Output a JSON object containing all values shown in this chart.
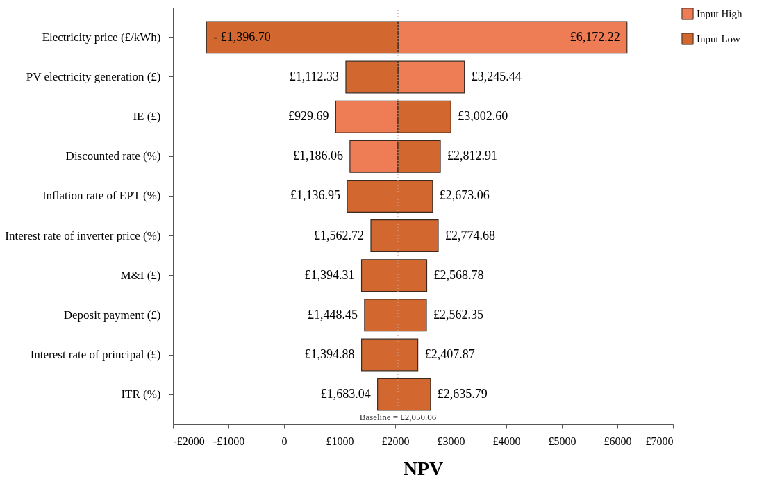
{
  "chart_data": {
    "type": "bar",
    "orientation": "horizontal",
    "xlabel": "NPV",
    "categories": [
      "Electricity price (£/kWh)",
      "PV electricity generation (£)",
      "IE (£)",
      "Discounted rate (%)",
      "Inflation rate of EPT (%)",
      "Interest rate of inverter price (%)",
      "M&I (£)",
      "Deposit payment (£)",
      "Interest rate of principal (£)",
      "ITR (%)"
    ],
    "series": [
      {
        "name": "Input High",
        "color": "#ee7d55",
        "base": [
          2050.06,
          2050.06,
          929.69,
          1186.06,
          null,
          null,
          null,
          null,
          null,
          null
        ],
        "values": [
          4122.16,
          1195.38,
          1120.37,
          864.0,
          null,
          null,
          null,
          null,
          null,
          null
        ]
      },
      {
        "name": "Input Low",
        "color": "#d2682f",
        "base": [
          -1396.7,
          1112.33,
          2050.06,
          2050.06,
          1136.95,
          1562.72,
          1394.31,
          1448.45,
          1394.88,
          1683.04
        ],
        "values": [
          3446.76,
          937.73,
          952.54,
          762.85,
          1536.11,
          1211.96,
          1174.47,
          1113.9,
          1012.99,
          952.75
        ]
      }
    ],
    "xlim": [
      -2000,
      7000
    ],
    "xticks": [
      {
        "value": -2000,
        "label": "-£2000"
      },
      {
        "value": -1000,
        "label": "-£1000"
      },
      0,
      {
        "value": 1000,
        "label": "£1000"
      },
      {
        "value": 2000,
        "label": "£2000"
      },
      {
        "value": 3000,
        "label": "£3000"
      },
      {
        "value": 4000,
        "label": "£4000"
      },
      {
        "value": 5000,
        "label": "£5000"
      },
      {
        "value": 6000,
        "label": "£6000"
      },
      {
        "value": 7000,
        "label": "£7000"
      }
    ],
    "ref_lines": [
      {
        "axis": "x",
        "value": 2050.06,
        "label": "Baseline = £2,050.06",
        "color": "#c8a090",
        "line_style": "dotted"
      }
    ],
    "annotations": [
      {
        "text": "- £1,396.70",
        "x": -1396.7,
        "y": "Electricity price (£/kWh)"
      },
      {
        "text": "£6,172.22",
        "x": 6172.22,
        "y": "Electricity price (£/kWh)"
      },
      {
        "text": "£1,112.33",
        "x": 1112.33,
        "y": "PV electricity generation (£)"
      },
      {
        "text": "£3,245.44",
        "x": 3245.44,
        "y": "PV electricity generation (£)"
      },
      {
        "text": "£929.69",
        "x": 929.69,
        "y": "IE (£)"
      },
      {
        "text": "£3,002.60",
        "x": 3002.6,
        "y": "IE (£)"
      },
      {
        "text": "£1,186.06",
        "x": 1186.06,
        "y": "Discounted rate (%)"
      },
      {
        "text": "£2,812.91",
        "x": 2812.91,
        "y": "Discounted rate (%)"
      },
      {
        "text": "£1,136.95",
        "x": 1136.95,
        "y": "Inflation rate of EPT (%)"
      },
      {
        "text": "£2,673.06",
        "x": 2673.06,
        "y": "Inflation rate of EPT (%)"
      },
      {
        "text": "£1,562.72",
        "x": 1562.72,
        "y": "Interest rate of inverter price (%)"
      },
      {
        "text": "£2,774.68",
        "x": 2774.68,
        "y": "Interest rate of inverter price (%)"
      },
      {
        "text": "£1,394.31",
        "x": 1394.31,
        "y": "M&I (£)"
      },
      {
        "text": "£2,568.78",
        "x": 2568.78,
        "y": "M&I (£)"
      },
      {
        "text": "£1,448.45",
        "x": 1448.45,
        "y": "Deposit payment (£)"
      },
      {
        "text": "£2,562.35",
        "x": 2562.35,
        "y": "Deposit payment (£)"
      },
      {
        "text": "£1,394.88",
        "x": 1394.88,
        "y": "Interest rate of principal (£)"
      },
      {
        "text": "£2,407.87",
        "x": 2407.87,
        "y": "Interest rate of principal (£)"
      },
      {
        "text": "£1,683.04",
        "x": 1683.04,
        "y": "ITR (%)"
      },
      {
        "text": "£2,635.79",
        "x": 2635.79,
        "y": "ITR (%)"
      }
    ],
    "grid": false,
    "legend": "right"
  }
}
